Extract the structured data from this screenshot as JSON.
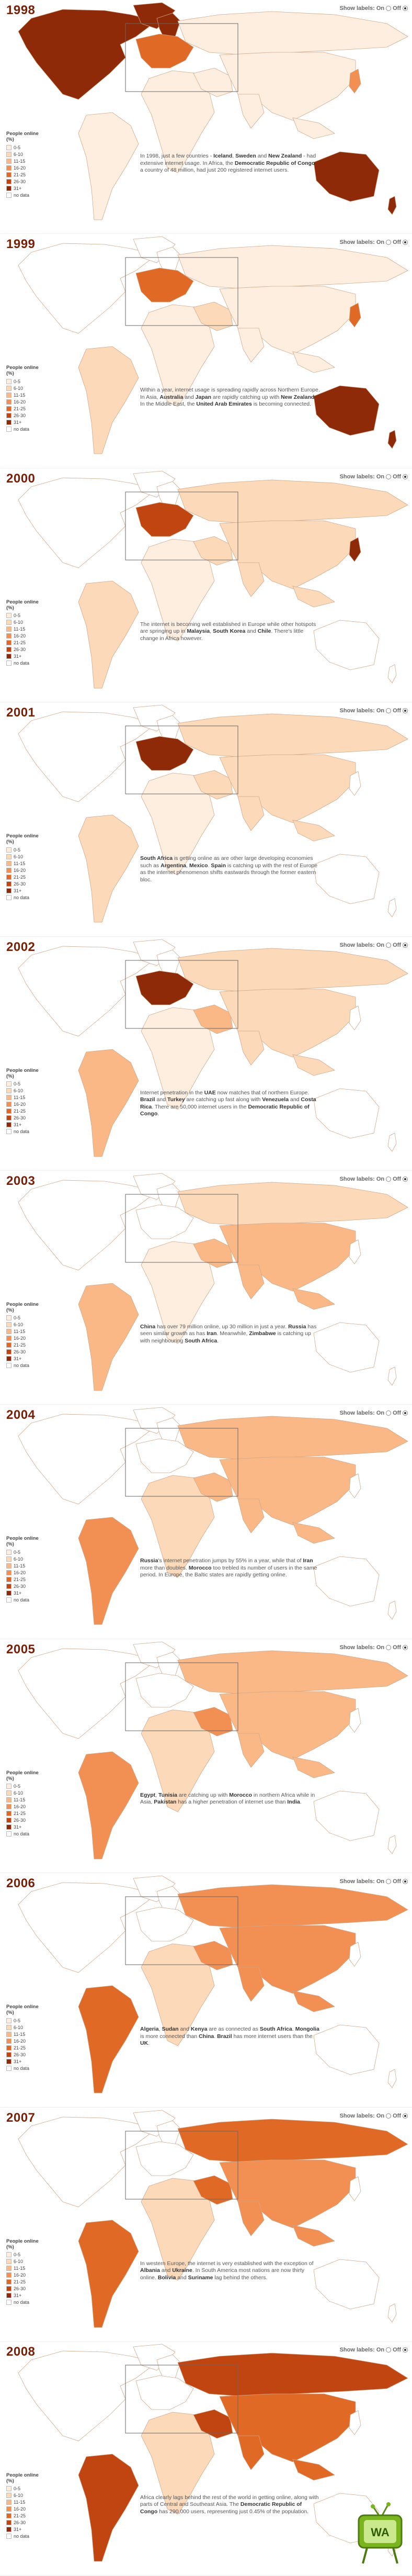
{
  "toggle": {
    "label": "Show labels:",
    "on": "On",
    "off": "Off"
  },
  "legend": {
    "title": "People online (%)",
    "classes": [
      {
        "label": "0-5",
        "color": "#fdeee0"
      },
      {
        "label": "6-10",
        "color": "#fcd9b8"
      },
      {
        "label": "11-15",
        "color": "#f9b886"
      },
      {
        "label": "16-20",
        "color": "#f28f52"
      },
      {
        "label": "21-25",
        "color": "#e06a25"
      },
      {
        "label": "26-30",
        "color": "#c04510"
      },
      {
        "label": "31+",
        "color": "#8e2a07"
      },
      {
        "label": "no data",
        "color": "#ffffff"
      }
    ]
  },
  "logo": {
    "text": "WA"
  },
  "years": [
    {
      "year": "1998",
      "levels": {
        "na": 6,
        "sa": 0,
        "eu": 4,
        "scand": 6,
        "af": 0,
        "me": 0,
        "ru": 0,
        "asia": 0,
        "jp": 3,
        "au": 6,
        "nz": 6
      },
      "caption": [
        {
          "t": "In 1998, just a few countries - "
        },
        {
          "t": "Iceland",
          "b": true
        },
        {
          "t": ", "
        },
        {
          "t": "Sweden",
          "b": true
        },
        {
          "t": " and "
        },
        {
          "t": "New Zealand",
          "b": true
        },
        {
          "t": " - had extensive internet usage. In Africa, the "
        },
        {
          "t": "Democratic Republic of Congo",
          "b": true
        },
        {
          "t": ", a country of 48 million, had just 200 registered internet users."
        }
      ]
    },
    {
      "year": "1999",
      "levels": {
        "na": 7,
        "sa": 1,
        "eu": 4,
        "scand": 7,
        "af": 0,
        "me": 1,
        "ru": 0,
        "asia": 0,
        "jp": 4,
        "au": 6,
        "nz": 6
      },
      "caption": [
        {
          "t": "Within a year, internet usage is spreading rapidly across Northern Europe. In Asia, "
        },
        {
          "t": "Australia",
          "b": true
        },
        {
          "t": " and "
        },
        {
          "t": "Japan",
          "b": true
        },
        {
          "t": " are rapidly catching up with "
        },
        {
          "t": "New Zealand",
          "b": true
        },
        {
          "t": ". In the Middle East, the "
        },
        {
          "t": "United Arab Emirates",
          "b": true
        },
        {
          "t": " is becoming connected."
        }
      ]
    },
    {
      "year": "2000",
      "levels": {
        "na": 7,
        "sa": 1,
        "eu": 5,
        "scand": 7,
        "af": 0,
        "me": 1,
        "ru": 1,
        "asia": 1,
        "jp": 6,
        "au": 7,
        "nz": 7
      },
      "caption": [
        {
          "t": "The internet is becoming well established in Europe while other hotspots are springing up in "
        },
        {
          "t": "Malaysia",
          "b": true
        },
        {
          "t": ", "
        },
        {
          "t": "South Korea",
          "b": true
        },
        {
          "t": " and "
        },
        {
          "t": "Chile",
          "b": true
        },
        {
          "t": ". There's little change in Africa however."
        }
      ]
    },
    {
      "year": "2001",
      "levels": {
        "na": 7,
        "sa": 1,
        "eu": 6,
        "scand": 7,
        "af": 0,
        "me": 1,
        "ru": 1,
        "asia": 1,
        "jp": 7,
        "au": 7,
        "nz": 7
      },
      "caption": [
        {
          "t": "South Africa",
          "b": true
        },
        {
          "t": " is getting online as are other large developing economies such as "
        },
        {
          "t": "Argentina",
          "b": true
        },
        {
          "t": ", "
        },
        {
          "t": "Mexico",
          "b": true
        },
        {
          "t": ". "
        },
        {
          "t": "Spain",
          "b": true
        },
        {
          "t": " is catching up with the rest of Europe as the internet phenomenon shifts eastwards through the former eastern bloc."
        }
      ]
    },
    {
      "year": "2002",
      "levels": {
        "na": 7,
        "sa": 2,
        "eu": 6,
        "scand": 7,
        "af": 0,
        "me": 2,
        "ru": 1,
        "asia": 1,
        "jp": 7,
        "au": 7,
        "nz": 7
      },
      "caption": [
        {
          "t": "Internet penetration in the "
        },
        {
          "t": "UAE",
          "b": true
        },
        {
          "t": " now matches that of northern Europe. "
        },
        {
          "t": "Brazil",
          "b": true
        },
        {
          "t": " and "
        },
        {
          "t": "Turkey",
          "b": true
        },
        {
          "t": " are catching up fast along with "
        },
        {
          "t": "Venezuela",
          "b": true
        },
        {
          "t": " and "
        },
        {
          "t": "Costa Rica",
          "b": true
        },
        {
          "t": ". There are 50,000 internet users in the "
        },
        {
          "t": "Democratic Republic of Congo",
          "b": true
        },
        {
          "t": "."
        }
      ]
    },
    {
      "year": "2003",
      "levels": {
        "na": 7,
        "sa": 2,
        "eu": 7,
        "scand": 7,
        "af": 0,
        "me": 2,
        "ru": 1,
        "asia": 2,
        "jp": 7,
        "au": 7,
        "nz": 7
      },
      "caption": [
        {
          "t": "China",
          "b": true
        },
        {
          "t": " has over 79 million online, up 30 million in just a year. "
        },
        {
          "t": "Russia",
          "b": true
        },
        {
          "t": " has seen similar growth as has "
        },
        {
          "t": "Iran",
          "b": true
        },
        {
          "t": ". Meanwhile, "
        },
        {
          "t": "Zimbabwe",
          "b": true
        },
        {
          "t": " is catching up with neighbouring "
        },
        {
          "t": "South Africa",
          "b": true
        },
        {
          "t": "."
        }
      ]
    },
    {
      "year": "2004",
      "levels": {
        "na": 7,
        "sa": 3,
        "eu": 7,
        "scand": 7,
        "af": 1,
        "me": 2,
        "ru": 2,
        "asia": 2,
        "jp": 7,
        "au": 7,
        "nz": 7
      },
      "caption": [
        {
          "t": "Russia",
          "b": true
        },
        {
          "t": "'s internet penetration jumps by 55% in a year, while that of "
        },
        {
          "t": "Iran",
          "b": true
        },
        {
          "t": " more than doubles. "
        },
        {
          "t": "Morocco",
          "b": true
        },
        {
          "t": " too trebled its number of users in the same period. In Europe, the Baltic states are rapidly getting online."
        }
      ]
    },
    {
      "year": "2005",
      "levels": {
        "na": 7,
        "sa": 3,
        "eu": 7,
        "scand": 7,
        "af": 1,
        "me": 3,
        "ru": 2,
        "asia": 2,
        "jp": 7,
        "au": 7,
        "nz": 7
      },
      "caption": [
        {
          "t": "Egypt",
          "b": true
        },
        {
          "t": ", "
        },
        {
          "t": "Tunisia",
          "b": true
        },
        {
          "t": " are catching up with "
        },
        {
          "t": "Morocco",
          "b": true
        },
        {
          "t": " in northern Africa while in Asia, "
        },
        {
          "t": "Pakistan",
          "b": true
        },
        {
          "t": " has a higher penetration of internet use than "
        },
        {
          "t": "India",
          "b": true
        },
        {
          "t": "."
        }
      ]
    },
    {
      "year": "2006",
      "levels": {
        "na": 7,
        "sa": 4,
        "eu": 7,
        "scand": 7,
        "af": 1,
        "me": 3,
        "ru": 3,
        "asia": 3,
        "jp": 7,
        "au": 7,
        "nz": 7
      },
      "caption": [
        {
          "t": "Algeria",
          "b": true
        },
        {
          "t": ", "
        },
        {
          "t": "Sudan",
          "b": true
        },
        {
          "t": " and "
        },
        {
          "t": "Kenya",
          "b": true
        },
        {
          "t": " are as connected as "
        },
        {
          "t": "South Africa",
          "b": true
        },
        {
          "t": ". "
        },
        {
          "t": "Mongolia",
          "b": true
        },
        {
          "t": " is more connected than "
        },
        {
          "t": "China",
          "b": true
        },
        {
          "t": ". "
        },
        {
          "t": "Brazil",
          "b": true
        },
        {
          "t": " has more internet users than the "
        },
        {
          "t": "UK",
          "b": true
        },
        {
          "t": "."
        }
      ]
    },
    {
      "year": "2007",
      "levels": {
        "na": 7,
        "sa": 4,
        "eu": 7,
        "scand": 7,
        "af": 1,
        "me": 4,
        "ru": 4,
        "asia": 3,
        "jp": 7,
        "au": 7,
        "nz": 7
      },
      "caption": [
        {
          "t": "In western Europe, the internet is very established with the exception of "
        },
        {
          "t": "Albania",
          "b": true
        },
        {
          "t": " and "
        },
        {
          "t": "Ukraine",
          "b": true
        },
        {
          "t": ". In South America most nations are now thirty online. "
        },
        {
          "t": "Bolivia",
          "b": true
        },
        {
          "t": " and "
        },
        {
          "t": "Suriname",
          "b": true
        },
        {
          "t": " lag behind the others."
        }
      ]
    },
    {
      "year": "2008",
      "levels": {
        "na": 7,
        "sa": 5,
        "eu": 7,
        "scand": 7,
        "af": 1,
        "me": 5,
        "ru": 5,
        "asia": 4,
        "jp": 7,
        "au": 7,
        "nz": 7
      },
      "caption": [
        {
          "t": "Africa clearly lags behind the rest of the world in getting online, along with parts of Central and Southeast Asia. The "
        },
        {
          "t": "Democratic Republic of Congo",
          "b": true
        },
        {
          "t": " has 290,000 users, representing just 0.45% of the population."
        }
      ]
    }
  ]
}
